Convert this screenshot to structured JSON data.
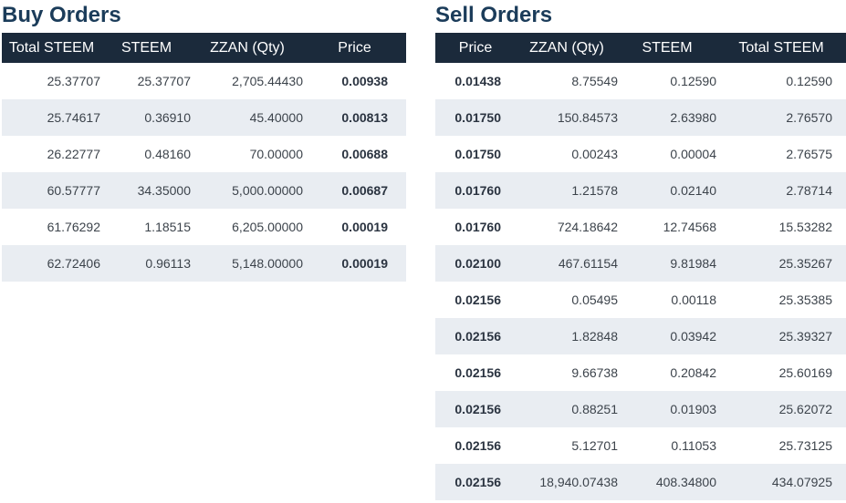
{
  "buy": {
    "title": "Buy Orders",
    "headers": [
      "Total STEEM",
      "STEEM",
      "ZZAN (Qty)",
      "Price"
    ],
    "rows": [
      {
        "total": "25.37707",
        "steem": "25.37707",
        "qty": "2,705.44430",
        "price": "0.00938"
      },
      {
        "total": "25.74617",
        "steem": "0.36910",
        "qty": "45.40000",
        "price": "0.00813"
      },
      {
        "total": "26.22777",
        "steem": "0.48160",
        "qty": "70.00000",
        "price": "0.00688"
      },
      {
        "total": "60.57777",
        "steem": "34.35000",
        "qty": "5,000.00000",
        "price": "0.00687"
      },
      {
        "total": "61.76292",
        "steem": "1.18515",
        "qty": "6,205.00000",
        "price": "0.00019"
      },
      {
        "total": "62.72406",
        "steem": "0.96113",
        "qty": "5,148.00000",
        "price": "0.00019"
      }
    ]
  },
  "sell": {
    "title": "Sell Orders",
    "headers": [
      "Price",
      "ZZAN (Qty)",
      "STEEM",
      "Total STEEM"
    ],
    "rows": [
      {
        "price": "0.01438",
        "qty": "8.75549",
        "steem": "0.12590",
        "total": "0.12590"
      },
      {
        "price": "0.01750",
        "qty": "150.84573",
        "steem": "2.63980",
        "total": "2.76570"
      },
      {
        "price": "0.01750",
        "qty": "0.00243",
        "steem": "0.00004",
        "total": "2.76575"
      },
      {
        "price": "0.01760",
        "qty": "1.21578",
        "steem": "0.02140",
        "total": "2.78714"
      },
      {
        "price": "0.01760",
        "qty": "724.18642",
        "steem": "12.74568",
        "total": "15.53282"
      },
      {
        "price": "0.02100",
        "qty": "467.61154",
        "steem": "9.81984",
        "total": "25.35267"
      },
      {
        "price": "0.02156",
        "qty": "0.05495",
        "steem": "0.00118",
        "total": "25.35385"
      },
      {
        "price": "0.02156",
        "qty": "1.82848",
        "steem": "0.03942",
        "total": "25.39327"
      },
      {
        "price": "0.02156",
        "qty": "9.66738",
        "steem": "0.20842",
        "total": "25.60169"
      },
      {
        "price": "0.02156",
        "qty": "0.88251",
        "steem": "0.01903",
        "total": "25.62072"
      },
      {
        "price": "0.02156",
        "qty": "5.12701",
        "steem": "0.11053",
        "total": "25.73125"
      },
      {
        "price": "0.02156",
        "qty": "18,940.07438",
        "steem": "408.34800",
        "total": "434.07925"
      }
    ]
  }
}
